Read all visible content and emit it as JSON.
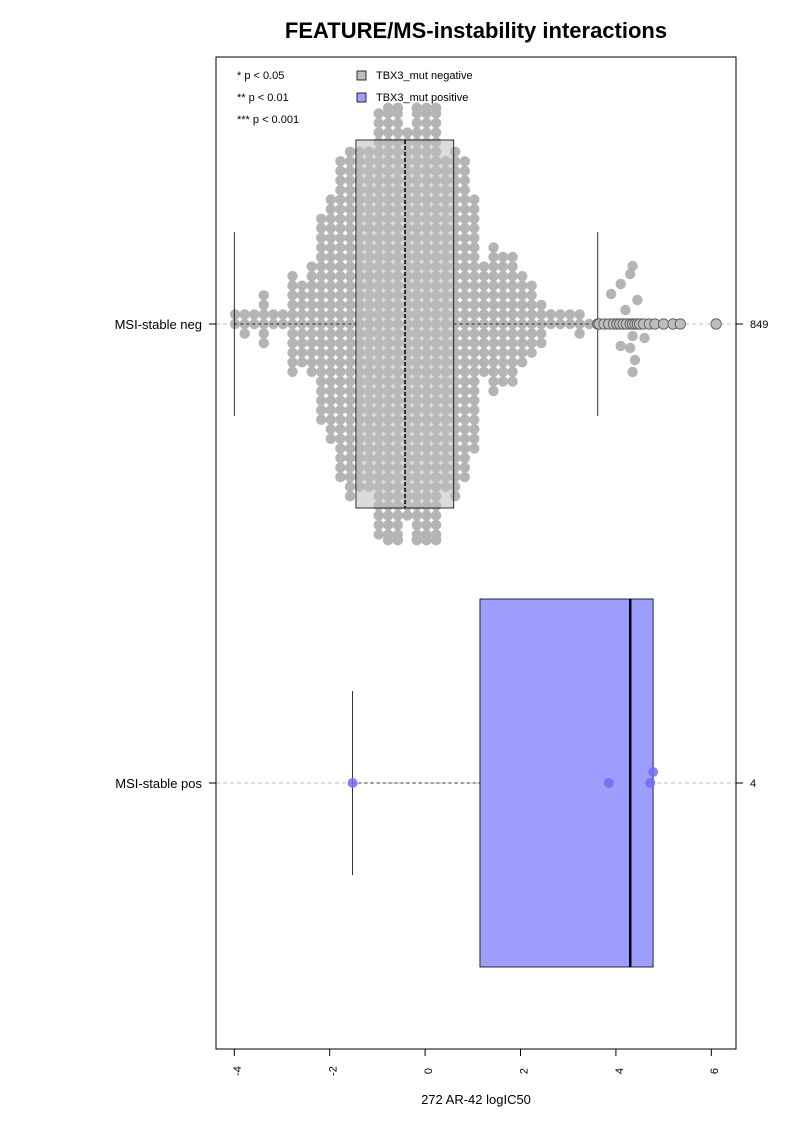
{
  "chart_data": {
    "type": "beeswarm-boxplot",
    "orientation": "horizontal",
    "title": "FEATURE/MS-instability interactions",
    "xlabel": "272 AR-42 logIC50",
    "x_ticks": [
      -4,
      -2,
      0,
      2,
      4,
      6
    ],
    "x_tick_labels": [
      "-4",
      "-2",
      "0",
      "2",
      "4",
      "6"
    ],
    "xlim": [
      -4.4,
      6.5
    ],
    "significance_legend": [
      "* p < 0.05",
      "** p < 0.01",
      "*** p < 0.001"
    ],
    "legend": [
      {
        "label": "TBX3_mut negative",
        "color": "#bebebe"
      },
      {
        "label": "TBX3_mut positive",
        "color": "#9e9eff"
      }
    ],
    "groups": [
      {
        "name": "MSI-stable neg",
        "n_label": "849",
        "n": 849,
        "color": "#bebebe",
        "point_color": "#b4b4b4",
        "box": {
          "whisker_low": -4.0,
          "q1": -1.45,
          "median": -0.42,
          "q3": 0.6,
          "whisker_high": 3.62
        },
        "outliers": [
          3.62,
          3.65,
          3.75,
          3.85,
          3.95,
          4.02,
          4.08,
          4.15,
          4.22,
          4.3,
          4.35,
          4.4,
          4.45,
          4.5,
          4.58,
          4.7,
          4.82,
          5.0,
          5.2,
          5.35,
          6.1
        ]
      },
      {
        "name": "MSI-stable pos",
        "n_label": "4",
        "n": 4,
        "color": "#9e9eff",
        "point_color": "#6f6ff2",
        "box": {
          "whisker_low": -1.52,
          "q1": 1.15,
          "median": 4.3,
          "q3": 4.78,
          "whisker_high": 4.78
        },
        "points": [
          -1.52,
          3.85,
          4.72,
          4.78
        ]
      }
    ]
  }
}
